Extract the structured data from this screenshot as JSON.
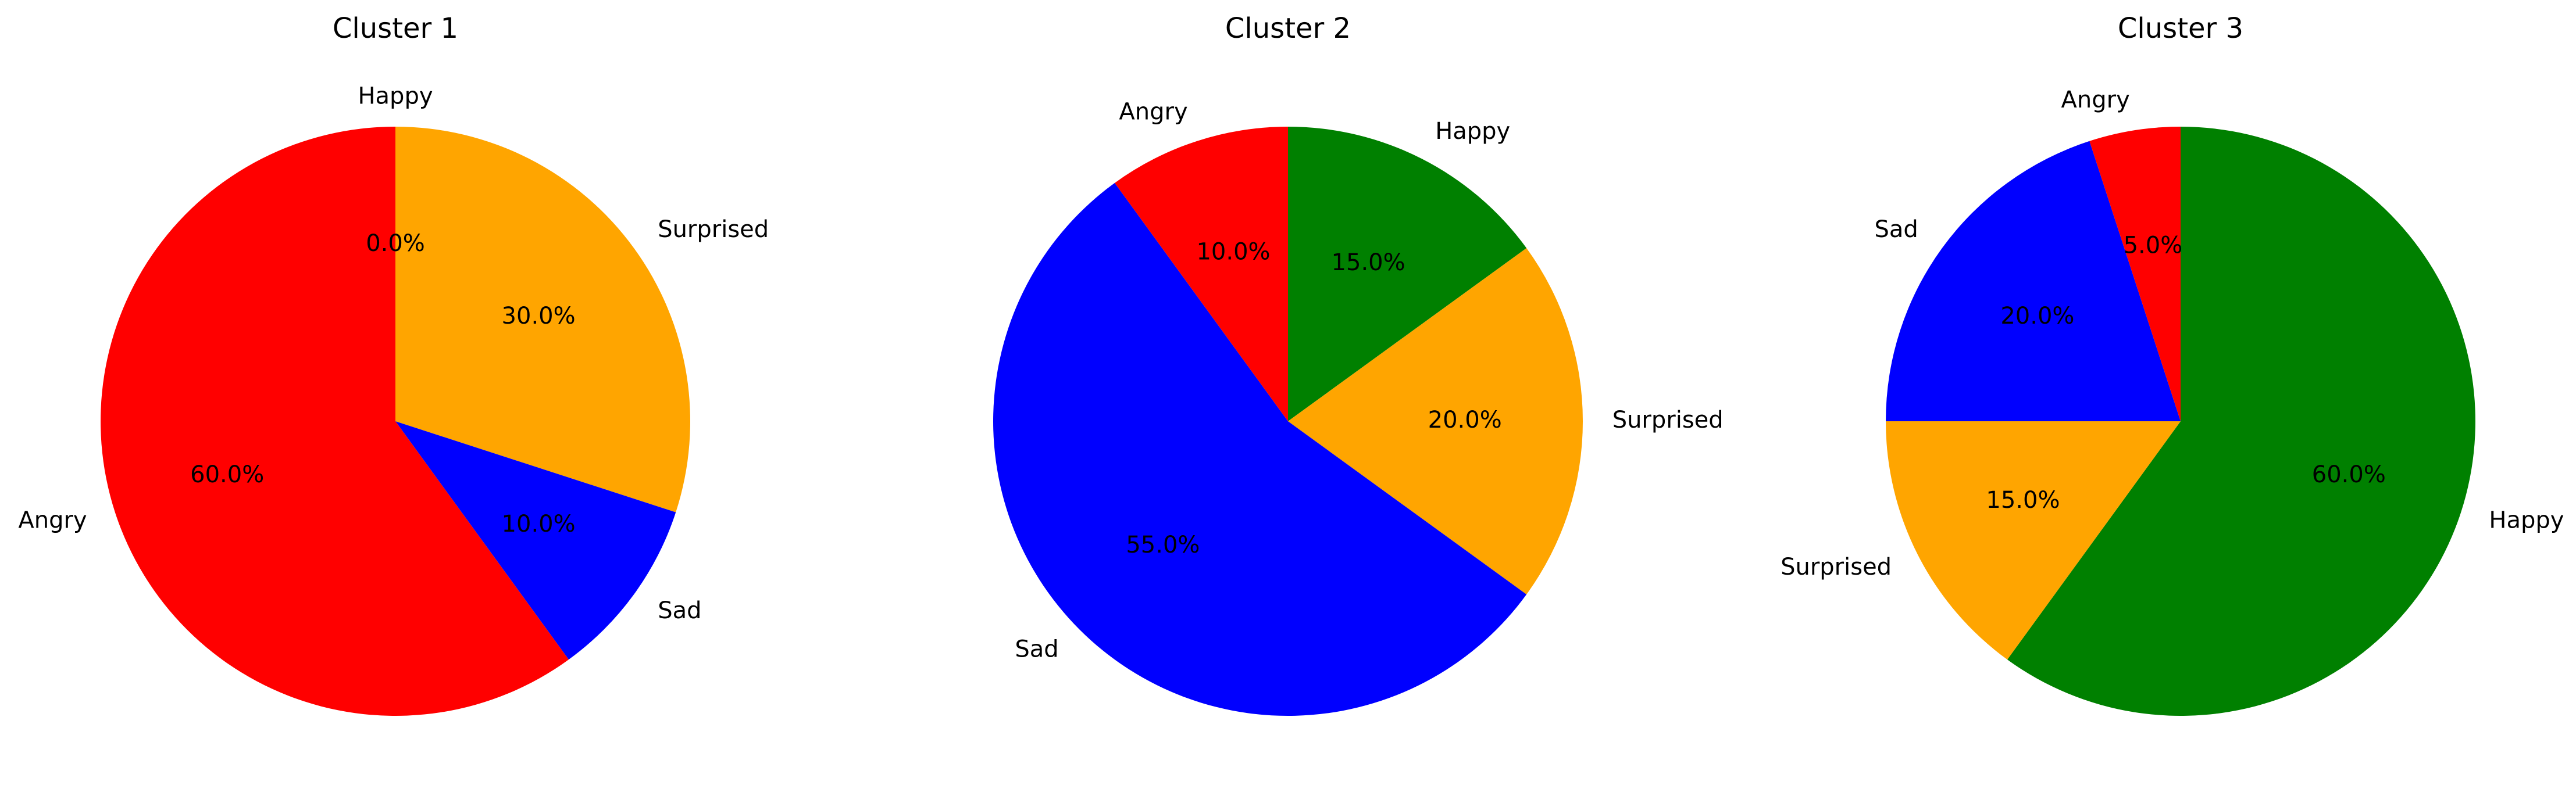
{
  "chart_data": [
    {
      "type": "pie",
      "title": "Cluster 1",
      "labels": [
        "Happy",
        "Surprised",
        "Sad",
        "Angry"
      ],
      "values": [
        0.0,
        30.0,
        10.0,
        60.0
      ],
      "pct_labels": [
        "0.0%",
        "30.0%",
        "10.0%",
        "60.0%"
      ],
      "colors": [
        "#008000",
        "#ffa500",
        "#0000ff",
        "#ff0000"
      ],
      "start_angle_deg": 90,
      "direction": "clockwise"
    },
    {
      "type": "pie",
      "title": "Cluster 2",
      "labels": [
        "Happy",
        "Surprised",
        "Sad",
        "Angry"
      ],
      "values": [
        15.0,
        20.0,
        55.0,
        10.0
      ],
      "pct_labels": [
        "15.0%",
        "20.0%",
        "55.0%",
        "10.0%"
      ],
      "colors": [
        "#008000",
        "#ffa500",
        "#0000ff",
        "#ff0000"
      ],
      "start_angle_deg": 90,
      "direction": "clockwise"
    },
    {
      "type": "pie",
      "title": "Cluster 3",
      "labels": [
        "Happy",
        "Surprised",
        "Sad",
        "Angry"
      ],
      "values": [
        60.0,
        15.0,
        20.0,
        5.0
      ],
      "pct_labels": [
        "60.0%",
        "15.0%",
        "20.0%",
        "5.0%"
      ],
      "colors": [
        "#008000",
        "#ffa500",
        "#0000ff",
        "#ff0000"
      ],
      "start_angle_deg": 90,
      "direction": "clockwise"
    }
  ]
}
